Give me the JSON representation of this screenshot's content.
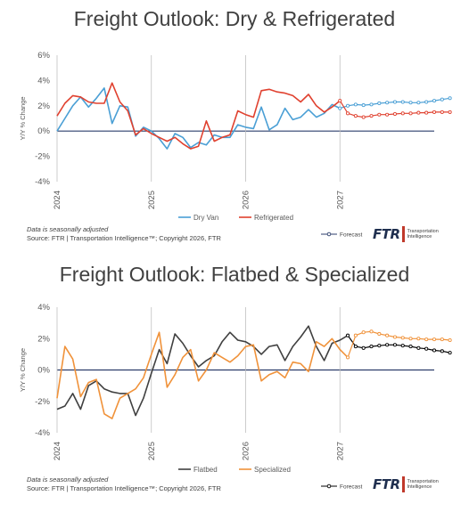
{
  "chart_data": [
    {
      "type": "line",
      "title": "Freight Outlook: Dry & Refrigerated",
      "ylabel": "Y/Y % Change",
      "ylim": [
        -4,
        6
      ],
      "yticks": [
        "-4%",
        "-2%",
        "0%",
        "2%",
        "4%",
        "6%"
      ],
      "xticks": [
        "2024",
        "2025",
        "2026",
        "2027"
      ],
      "x_start": "Jan 2024",
      "grid": false,
      "legend_position": "bottom",
      "colors": {
        "Dry Van": "#4a9fd5",
        "Refrigerated": "#e0412f",
        "Forecast": "#2c3e6b"
      },
      "series": [
        {
          "name": "Dry Van",
          "values": [
            0.0,
            1.0,
            2.0,
            2.7,
            1.9,
            2.6,
            3.4,
            0.6,
            2.0,
            1.9,
            -0.4,
            0.3,
            0.0,
            -0.6,
            -1.4,
            -0.2,
            -0.5,
            -1.3,
            -0.9,
            -1.1,
            -0.3,
            -0.5,
            -0.5,
            0.5,
            0.3,
            0.2,
            1.9,
            0.1,
            0.5,
            1.8,
            0.9,
            1.1,
            1.7,
            1.1,
            1.4,
            2.1,
            1.8,
            2.0,
            2.1,
            2.05,
            2.1,
            2.2,
            2.25,
            2.3,
            2.3,
            2.25,
            2.25,
            2.3,
            2.4,
            2.5,
            2.6
          ]
        },
        {
          "name": "Refrigerated",
          "values": [
            1.2,
            2.2,
            2.8,
            2.7,
            2.3,
            2.2,
            2.2,
            3.8,
            2.3,
            1.6,
            -0.3,
            0.2,
            -0.2,
            -0.5,
            -0.8,
            -0.5,
            -1.0,
            -1.4,
            -1.2,
            0.8,
            -0.8,
            -0.5,
            -0.3,
            1.6,
            1.3,
            1.1,
            3.2,
            3.3,
            3.1,
            3.0,
            2.8,
            2.3,
            2.9,
            2.0,
            1.5,
            1.9,
            2.4,
            1.4,
            1.2,
            1.1,
            1.2,
            1.3,
            1.3,
            1.35,
            1.4,
            1.4,
            1.45,
            1.45,
            1.5,
            1.5,
            1.5
          ]
        }
      ],
      "forecast_start_index": 36,
      "legend": [
        "Dry Van",
        "Refrigerated"
      ],
      "forecast_label": "Forecast",
      "note": "Data is seasonally adjusted",
      "source": "Source: FTR | Transportation Intelligence™; Copyright 2026, FTR"
    },
    {
      "type": "line",
      "title": "Freight Outlook: Flatbed & Specialized",
      "ylabel": "Y/Y % Change",
      "ylim": [
        -4,
        4
      ],
      "yticks": [
        "-4%",
        "-2%",
        "0%",
        "2%",
        "4%"
      ],
      "xticks": [
        "2024",
        "2025",
        "2026",
        "2027"
      ],
      "x_start": "Jan 2024",
      "grid": false,
      "legend_position": "bottom",
      "colors": {
        "Flatbed": "#404040",
        "Specialized": "#f0923a",
        "Forecast": "#000000"
      },
      "series": [
        {
          "name": "Flatbed",
          "values": [
            -2.5,
            -2.3,
            -1.5,
            -2.5,
            -1.0,
            -0.7,
            -1.2,
            -1.4,
            -1.5,
            -1.5,
            -2.9,
            -1.8,
            -0.2,
            1.3,
            0.4,
            2.3,
            1.7,
            0.9,
            0.2,
            0.6,
            0.9,
            1.8,
            2.4,
            1.9,
            1.8,
            1.5,
            1.0,
            1.5,
            1.6,
            0.6,
            1.5,
            2.1,
            2.8,
            1.5,
            0.6,
            1.7,
            1.9,
            2.2,
            1.5,
            1.4,
            1.5,
            1.55,
            1.6,
            1.6,
            1.55,
            1.5,
            1.4,
            1.35,
            1.25,
            1.2,
            1.1
          ]
        },
        {
          "name": "Specialized",
          "values": [
            -1.8,
            1.5,
            0.7,
            -1.7,
            -0.8,
            -0.6,
            -2.8,
            -3.1,
            -1.8,
            -1.5,
            -1.2,
            -0.5,
            1.0,
            2.4,
            -1.1,
            -0.3,
            0.8,
            1.3,
            -0.7,
            0.0,
            1.1,
            0.8,
            0.5,
            0.9,
            1.5,
            1.6,
            -0.7,
            -0.3,
            -0.1,
            -0.5,
            0.5,
            0.4,
            -0.1,
            1.8,
            1.5,
            2.0,
            1.3,
            0.8,
            2.2,
            2.4,
            2.45,
            2.3,
            2.2,
            2.1,
            2.05,
            2.0,
            2.0,
            1.95,
            1.95,
            1.95,
            1.9
          ]
        }
      ],
      "forecast_start_index": 37,
      "legend": [
        "Flatbed",
        "Specialized"
      ],
      "forecast_label": "Forecast",
      "note": "Data is seasonally adjusted",
      "source": "Source: FTR | Transportation Intelligence™; Copyright 2026, FTR"
    }
  ],
  "logo": {
    "mark": "FTR",
    "line1": "Transportation",
    "line2": "Intelligence"
  }
}
